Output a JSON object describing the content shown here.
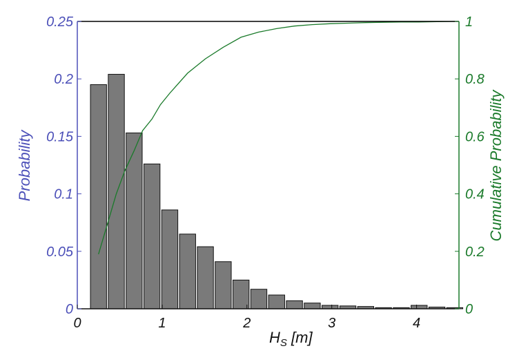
{
  "chart_data": {
    "type": "bar",
    "xlabel": {
      "main": "H",
      "sub": "S",
      "rest": " [m]"
    },
    "ylabel_left": "Probability",
    "ylabel_right": "Cumulative Probability",
    "xlim": [
      0,
      4.5
    ],
    "ylim_left": [
      0,
      0.25
    ],
    "ylim_right": [
      0,
      1
    ],
    "x_ticks": [
      "0",
      "1",
      "2",
      "3",
      "4"
    ],
    "x_tick_values": [
      0,
      1,
      2,
      3,
      4
    ],
    "y_left_ticks": [
      "0",
      "0.05",
      "0.1",
      "0.15",
      "0.2",
      "0.25"
    ],
    "y_left_tick_values": [
      0,
      0.05,
      0.1,
      0.15,
      0.2,
      0.25
    ],
    "y_right_ticks": [
      "0",
      "0.2",
      "0.4",
      "0.6",
      "0.8",
      "1"
    ],
    "y_right_tick_values": [
      0,
      0.2,
      0.4,
      0.6,
      0.8,
      1
    ],
    "bar_width": 0.19,
    "bars": {
      "x": [
        0.25,
        0.46,
        0.67,
        0.88,
        1.09,
        1.3,
        1.51,
        1.72,
        1.93,
        2.14,
        2.35,
        2.56,
        2.77,
        2.98,
        3.19,
        3.4,
        3.61,
        3.82,
        4.03,
        4.24,
        4.45
      ],
      "values": [
        0.195,
        0.204,
        0.153,
        0.126,
        0.086,
        0.065,
        0.054,
        0.041,
        0.025,
        0.017,
        0.012,
        0.007,
        0.005,
        0.003,
        0.0025,
        0.002,
        0.001,
        0.001,
        0.003,
        0.0015,
        0.001
      ]
    },
    "cumulative": {
      "x": [
        0.25,
        0.35,
        0.46,
        0.56,
        0.67,
        0.77,
        0.88,
        0.98,
        1.09,
        1.3,
        1.51,
        1.72,
        1.93,
        2.14,
        2.35,
        2.56,
        2.77,
        2.98,
        3.19,
        3.4,
        3.61,
        3.82,
        4.03,
        4.24,
        4.45
      ],
      "values": [
        0.19,
        0.29,
        0.4,
        0.48,
        0.55,
        0.62,
        0.66,
        0.71,
        0.75,
        0.82,
        0.87,
        0.91,
        0.945,
        0.963,
        0.975,
        0.984,
        0.989,
        0.992,
        0.994,
        0.996,
        0.997,
        0.998,
        0.998,
        0.999,
        1.0
      ]
    },
    "colors": {
      "bars": "#7a7a7a",
      "bar_edge": "#111111",
      "line": "#1a7a2a",
      "left_axis": "#4b4fb8",
      "right_axis": "#1a7a2a",
      "x_axis": "#111111"
    },
    "grid": false
  }
}
